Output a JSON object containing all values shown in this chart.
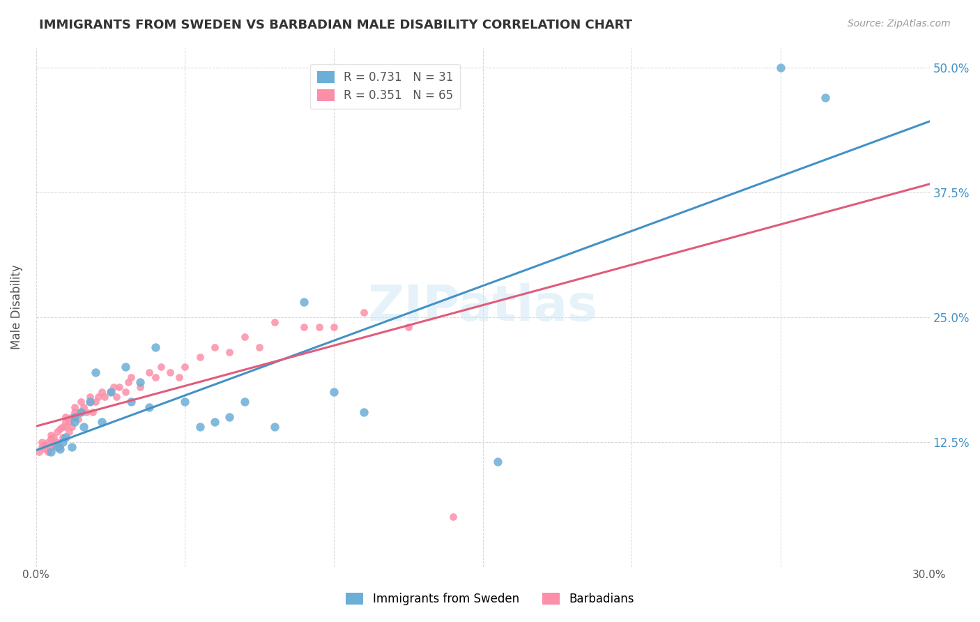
{
  "title": "IMMIGRANTS FROM SWEDEN VS BARBADIAN MALE DISABILITY CORRELATION CHART",
  "source": "Source: ZipAtlas.com",
  "xlabel": "",
  "ylabel": "Male Disability",
  "xlim": [
    0.0,
    0.3
  ],
  "ylim": [
    0.0,
    0.52
  ],
  "xticks": [
    0.0,
    0.05,
    0.1,
    0.15,
    0.2,
    0.25,
    0.3
  ],
  "xtick_labels": [
    "0.0%",
    "",
    "",
    "",
    "",
    "",
    "30.0%"
  ],
  "ytick_labels_right": [
    "12.5%",
    "25.0%",
    "37.5%",
    "50.0%"
  ],
  "yticks_right": [
    0.125,
    0.25,
    0.375,
    0.5
  ],
  "legend_r1": "R = 0.731",
  "legend_n1": "N = 31",
  "legend_r2": "R = 0.351",
  "legend_n2": "N = 65",
  "blue_color": "#6baed6",
  "pink_color": "#fc8fa8",
  "line_blue": "#4292c6",
  "line_pink": "#e05c7a",
  "watermark": "ZIPatlas",
  "blue_x": [
    0.005,
    0.007,
    0.008,
    0.009,
    0.01,
    0.012,
    0.013,
    0.013,
    0.015,
    0.016,
    0.018,
    0.02,
    0.022,
    0.025,
    0.03,
    0.032,
    0.035,
    0.038,
    0.04,
    0.05,
    0.055,
    0.06,
    0.065,
    0.07,
    0.08,
    0.09,
    0.1,
    0.11,
    0.155,
    0.25,
    0.265
  ],
  "blue_y": [
    0.115,
    0.12,
    0.118,
    0.125,
    0.13,
    0.12,
    0.145,
    0.15,
    0.155,
    0.14,
    0.165,
    0.195,
    0.145,
    0.175,
    0.2,
    0.165,
    0.185,
    0.16,
    0.22,
    0.165,
    0.14,
    0.145,
    0.15,
    0.165,
    0.14,
    0.265,
    0.175,
    0.155,
    0.105,
    0.5,
    0.47
  ],
  "pink_x": [
    0.001,
    0.002,
    0.002,
    0.003,
    0.003,
    0.004,
    0.004,
    0.005,
    0.005,
    0.005,
    0.006,
    0.006,
    0.007,
    0.007,
    0.008,
    0.008,
    0.009,
    0.009,
    0.01,
    0.01,
    0.01,
    0.011,
    0.011,
    0.012,
    0.012,
    0.013,
    0.013,
    0.014,
    0.015,
    0.015,
    0.016,
    0.017,
    0.018,
    0.018,
    0.019,
    0.02,
    0.021,
    0.022,
    0.023,
    0.025,
    0.026,
    0.027,
    0.028,
    0.03,
    0.031,
    0.032,
    0.035,
    0.038,
    0.04,
    0.042,
    0.045,
    0.048,
    0.05,
    0.055,
    0.06,
    0.065,
    0.07,
    0.075,
    0.08,
    0.09,
    0.095,
    0.1,
    0.11,
    0.125,
    0.14
  ],
  "pink_y": [
    0.115,
    0.12,
    0.125,
    0.118,
    0.122,
    0.115,
    0.125,
    0.12,
    0.128,
    0.132,
    0.122,
    0.13,
    0.125,
    0.135,
    0.12,
    0.138,
    0.14,
    0.13,
    0.14,
    0.145,
    0.15,
    0.135,
    0.145,
    0.14,
    0.15,
    0.155,
    0.16,
    0.148,
    0.155,
    0.165,
    0.16,
    0.155,
    0.165,
    0.17,
    0.155,
    0.165,
    0.17,
    0.175,
    0.17,
    0.175,
    0.18,
    0.17,
    0.18,
    0.175,
    0.185,
    0.19,
    0.18,
    0.195,
    0.19,
    0.2,
    0.195,
    0.19,
    0.2,
    0.21,
    0.22,
    0.215,
    0.23,
    0.22,
    0.245,
    0.24,
    0.24,
    0.24,
    0.255,
    0.24,
    0.05
  ]
}
